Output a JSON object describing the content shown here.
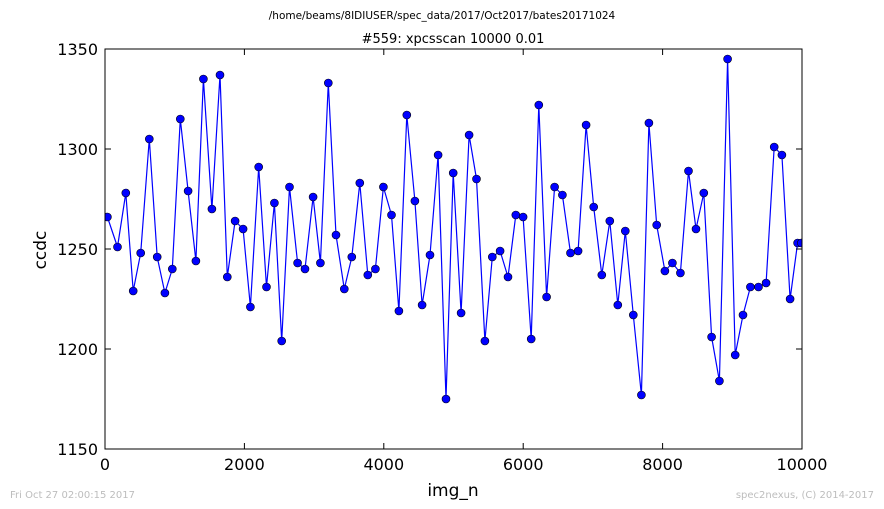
{
  "chart_data": {
    "type": "line",
    "suptitle": "/home/beams/8IDIUSER/spec_data/2017/Oct2017/bates20171024",
    "title": "#559: xpcsscan 10000 0.01",
    "xlabel": "img_n",
    "ylabel": "ccdc",
    "xlim": [
      0,
      10000
    ],
    "ylim": [
      1150,
      1350
    ],
    "xticks": [
      0,
      2000,
      4000,
      6000,
      8000,
      10000
    ],
    "yticks": [
      1150,
      1200,
      1250,
      1300,
      1350
    ],
    "grid": false,
    "legend": "none",
    "series": [
      {
        "color": "#0000ff",
        "marker": "circle",
        "x": [
          34,
          180,
          298,
          405,
          512,
          635,
          749,
          860,
          965,
          1080,
          1192,
          1304,
          1412,
          1534,
          1650,
          1755,
          1867,
          1982,
          2086,
          2205,
          2317,
          2430,
          2535,
          2647,
          2763,
          2869,
          2985,
          3091,
          3204,
          3314,
          3433,
          3541,
          3655,
          3771,
          3880,
          3994,
          4110,
          4216,
          4330,
          4446,
          4549,
          4663,
          4779,
          4893,
          4995,
          5109,
          5224,
          5330,
          5451,
          5557,
          5669,
          5782,
          5894,
          5999,
          6115,
          6224,
          6336,
          6450,
          6562,
          6678,
          6787,
          6902,
          7012,
          7128,
          7242,
          7357,
          7465,
          7580,
          7696,
          7804,
          7916,
          8033,
          8140,
          8255,
          8371,
          8479,
          8591,
          8703,
          8815,
          8932,
          9041,
          9153,
          9260,
          9376,
          9485,
          9601,
          9711,
          9829,
          9937,
          9990
        ],
        "y": [
          1266,
          1251,
          1278,
          1229,
          1248,
          1305,
          1246,
          1228,
          1240,
          1315,
          1279,
          1244,
          1335,
          1270,
          1337,
          1236,
          1264,
          1260,
          1221,
          1291,
          1231,
          1273,
          1204,
          1281,
          1243,
          1240,
          1276,
          1243,
          1333,
          1257,
          1230,
          1246,
          1283,
          1237,
          1240,
          1281,
          1267,
          1219,
          1317,
          1274,
          1222,
          1247,
          1297,
          1175,
          1288,
          1218,
          1307,
          1285,
          1204,
          1246,
          1249,
          1236,
          1267,
          1266,
          1205,
          1322,
          1226,
          1281,
          1277,
          1248,
          1249,
          1312,
          1271,
          1237,
          1264,
          1222,
          1259,
          1217,
          1177,
          1313,
          1262,
          1239,
          1243,
          1238,
          1289,
          1260,
          1278,
          1206,
          1184,
          1345,
          1197,
          1217,
          1231,
          1231,
          1233,
          1301,
          1297,
          1225,
          1253,
          1253
        ]
      }
    ]
  },
  "footer": {
    "timestamp": "Fri Oct 27 02:00:15 2017",
    "credit": "spec2nexus, (C) 2014-2017"
  }
}
